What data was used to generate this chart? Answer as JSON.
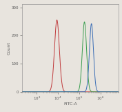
{
  "title": "",
  "xlabel": "FITC-A",
  "ylabel": "Count",
  "xlim_log": [
    2.3,
    6.85
  ],
  "ylim": [
    0,
    310
  ],
  "yticks": [
    0,
    100,
    200,
    300
  ],
  "background_color": "#e8e4de",
  "plot_bg_color": "#e8e4de",
  "curves": [
    {
      "color": "#c0393b",
      "peak_log": 3.95,
      "sigma_log": 0.115,
      "amplitude": 255
    },
    {
      "color": "#3a9e4f",
      "peak_log": 5.25,
      "sigma_log": 0.1,
      "amplitude": 248
    },
    {
      "color": "#3a6db5",
      "peak_log": 5.58,
      "sigma_log": 0.095,
      "amplitude": 242
    }
  ]
}
